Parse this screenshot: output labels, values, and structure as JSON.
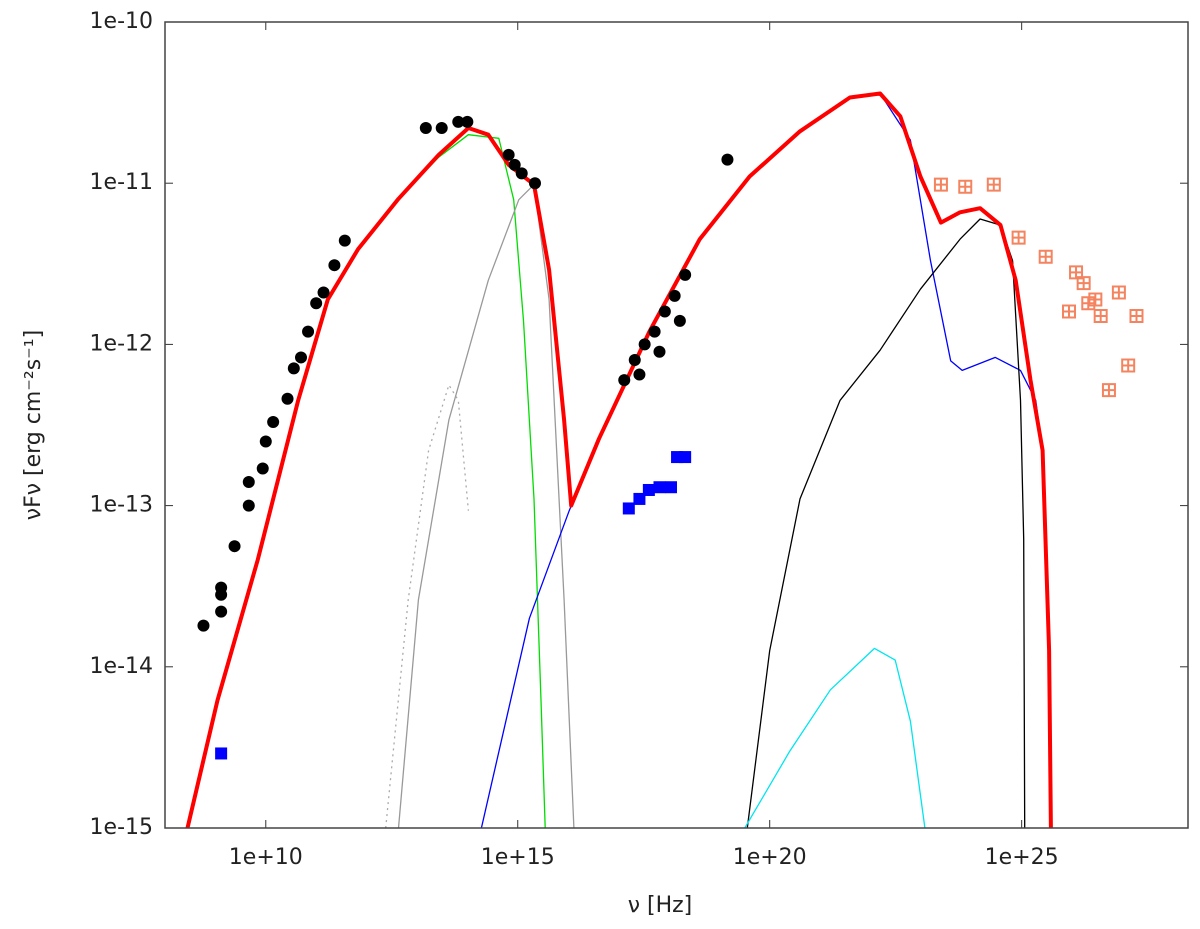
{
  "chart_data": {
    "type": "line",
    "xlabel": "ν [Hz]",
    "ylabel": "νFν [erg cm⁻²s⁻¹]",
    "xscale": "log",
    "yscale": "log",
    "xlim": [
      100000000.0,
      2e+28
    ],
    "ylim": [
      1e-15,
      1e-10
    ],
    "xticks": [
      {
        "value": 10000000000.0,
        "label": "1e+10"
      },
      {
        "value": 1000000000000000.0,
        "label": "1e+15"
      },
      {
        "value": 1e+20,
        "label": "1e+20"
      },
      {
        "value": 1e+25,
        "label": "1e+25"
      }
    ],
    "yticks": [
      {
        "value": 1e-15,
        "label": "1e-15"
      },
      {
        "value": 1e-14,
        "label": "1e-14"
      },
      {
        "value": 1e-13,
        "label": "1e-13"
      },
      {
        "value": 1e-12,
        "label": "1e-12"
      },
      {
        "value": 1e-11,
        "label": "1e-11"
      },
      {
        "value": 1e-10,
        "label": "1e-10"
      }
    ],
    "grid": false,
    "series": [
      {
        "mode": "line",
        "color": "#ff0000",
        "width": 4,
        "x": [
          280000000.0,
          1100000000.0,
          6900000000.0,
          44000000000.0,
          170000000000.0,
          680000000000.0,
          4300000000000.0,
          27000000000000.0,
          105000000000000.0,
          260000000000000.0,
          660000000000000.0,
          2100000000000000.0,
          4200000000000000.0,
          8300000000000000.0,
          1.15e+16,
          4.1e+16,
          4.1e+17,
          4.1e+18,
          4e+19,
          4e+20,
          3.9e+21,
          1.55e+22,
          3.9e+22,
          9.8e+22,
          2.5e+23,
          6e+23,
          1.5e+24,
          3.8e+24,
          7.6e+24,
          1.5e+25,
          2.6e+25,
          3.5e+25,
          3.8e+25
        ],
        "values": [
          1e-15,
          6.2e-15,
          4.6e-14,
          4.5e-13,
          1.9e-12,
          3.9e-12,
          8e-12,
          1.5e-11,
          2.2e-11,
          2e-11,
          1.3e-11,
          9.8e-12,
          2.9e-12,
          3.4e-13,
          1e-13,
          2.6e-13,
          1.2e-12,
          4.5e-12,
          1.1e-11,
          2.1e-11,
          3.4e-11,
          3.6e-11,
          2.6e-11,
          1.1e-11,
          5.7e-12,
          6.6e-12,
          7e-12,
          5.5e-12,
          2.5e-12,
          6e-13,
          2.2e-13,
          1.26e-14,
          1e-15
        ]
      },
      {
        "mode": "line",
        "color": "#00dd00",
        "width": 1.3,
        "x": [
          280000000.0,
          1100000000.0,
          6900000000.0,
          44000000000.0,
          170000000000.0,
          680000000000.0,
          4300000000000.0,
          27000000000000.0,
          105000000000000.0,
          420000000000000.0,
          830000000000000.0,
          1300000000000000.0,
          2100000000000000.0,
          2900000000000000.0,
          3500000000000000.0
        ],
        "values": [
          1e-15,
          6.2e-15,
          4.6e-14,
          4.5e-13,
          1.9e-12,
          3.9e-12,
          8e-12,
          1.45e-11,
          2e-11,
          1.9e-11,
          7.9e-12,
          1.4e-12,
          1.1e-13,
          6.2e-15,
          1e-15
        ]
      },
      {
        "mode": "line",
        "color": "#999999",
        "width": 1.3,
        "x": [
          4300000000000.0,
          10700000000000.0,
          43000000000000.0,
          260000000000000.0,
          1050000000000000.0,
          2100000000000000.0,
          4200000000000000.0,
          8300000000000000.0,
          1.3e+16
        ],
        "values": [
          1e-15,
          2.6e-14,
          3.4e-13,
          2.5e-12,
          7.9e-12,
          9.8e-12,
          1.9e-12,
          2.6e-14,
          1e-15
        ]
      },
      {
        "mode": "line",
        "color": "#aaaaaa",
        "width": 1.3,
        "dash": "2,4",
        "x": [
          2400000000000.0,
          6700000000000.0,
          17000000000000.0,
          43000000000000.0,
          66000000000000.0,
          105000000000000.0
        ],
        "values": [
          1e-15,
          2.6e-14,
          2.2e-13,
          5.6e-13,
          4.5e-13,
          9.3e-14
        ]
      },
      {
        "mode": "line",
        "color": "#0000ff",
        "width": 1.3,
        "x": [
          190000000000000.0,
          1700000000000000.0,
          1.05e+16,
          4.1e+16,
          4.1e+17,
          4.1e+18,
          4e+19,
          4e+20,
          3.9e+21,
          1.55e+22,
          6.2e+22,
          1.55e+23,
          3.9e+23,
          6.6e+23,
          3e+24,
          9.5e+24,
          1.9e+25,
          2.6e+25,
          3.5e+25,
          3.8e+25
        ],
        "values": [
          1e-15,
          2e-14,
          9.3e-14,
          2.6e-13,
          1.2e-12,
          4.5e-12,
          1.1e-11,
          2.1e-11,
          3.4e-11,
          3.6e-11,
          1.85e-11,
          3.3e-12,
          7.9e-13,
          6.9e-13,
          8.3e-13,
          6.9e-13,
          4.5e-13,
          2.2e-13,
          1.26e-14,
          1e-15
        ]
      },
      {
        "mode": "line",
        "color": "#000000",
        "width": 1.3,
        "x": [
          3.6e+19,
          1e+20,
          4e+20,
          2.5e+21,
          1.55e+22,
          9.8e+22,
          6e+23,
          1.5e+24,
          3.8e+24,
          6.6e+24,
          9.5e+24,
          1.1e+25,
          1.15e+25
        ],
        "values": [
          1e-15,
          1.26e-14,
          1.1e-13,
          4.5e-13,
          9.2e-13,
          2.2e-12,
          4.5e-12,
          6e-12,
          5.5e-12,
          3.3e-12,
          4.5e-13,
          6.2e-14,
          1e-15
        ]
      },
      {
        "mode": "line",
        "color": "#00e5ee",
        "width": 1.3,
        "x": [
          3.2e+19,
          2.5e+20,
          1.6e+21,
          1.2e+22,
          3.1e+22,
          6.2e+22,
          1.2e+23
        ],
        "values": [
          1e-15,
          3e-15,
          7.2e-15,
          1.3e-14,
          1.1e-14,
          4.6e-15,
          1e-15
        ]
      },
      {
        "mode": "markers",
        "marker": "circle",
        "color": "#000000",
        "x": [
          580000000.0,
          1300000000.0,
          1300000000.0,
          1300000000.0,
          2400000000.0,
          4600000000.0,
          4600000000.0,
          8700000000.0,
          10000000000.0,
          14000000000.0,
          27000000000.0,
          36000000000.0,
          50000000000.0,
          69000000000.0,
          100000000000.0,
          140000000000.0,
          230000000000.0,
          370000000000.0,
          15000000000000.0,
          31000000000000.0,
          66000000000000.0,
          100000000000000.0,
          660000000000000.0,
          870000000000000.0,
          1200000000000000.0,
          2200000000000000.0,
          1.3e+17,
          2.1e+17,
          3.3e+17,
          5.2e+17,
          8.3e+17,
          1.3e+18,
          2.1e+18,
          2.6e+17,
          6.5e+17,
          1.65e+18,
          1.45e+19
        ],
        "values": [
          1.8e-14,
          2.2e-14,
          2.8e-14,
          3.1e-14,
          5.6e-14,
          1e-13,
          1.4e-13,
          1.7e-13,
          2.5e-13,
          3.3e-13,
          4.6e-13,
          7.1e-13,
          8.3e-13,
          1.2e-12,
          1.8e-12,
          2.1e-12,
          3.1e-12,
          4.4e-12,
          2.2e-11,
          2.2e-11,
          2.4e-11,
          2.4e-11,
          1.5e-11,
          1.3e-11,
          1.15e-11,
          1e-11,
          6e-13,
          8e-13,
          1e-12,
          1.2e-12,
          1.6e-12,
          2e-12,
          2.7e-12,
          6.5e-13,
          9e-13,
          1.4e-12,
          1.4e-11
        ]
      },
      {
        "mode": "markers",
        "marker": "square",
        "color": "#0000ff",
        "x": [
          1300000000.0,
          1.6e+17,
          2.6e+17,
          4e+17,
          6.5e+17,
          1.1e+18,
          1.45e+18,
          2.1e+18
        ],
        "values": [
          2.9e-15,
          9.6e-14,
          1.1e-13,
          1.25e-13,
          1.3e-13,
          1.3e-13,
          2e-13,
          2e-13
        ]
      },
      {
        "mode": "markers",
        "marker": "open-square",
        "color": "#f4845f",
        "x": [
          2.5e+23,
          7.6e+23,
          2.8e+24,
          8.7e+24,
          3e+25,
          8.7e+25,
          1.2e+26,
          1.7e+26,
          2.1e+26,
          2.9e+26,
          3.7e+26,
          5.4e+26,
          8.5e+26,
          1.3e+27,
          1.9e+27
        ],
        "values": [
          9.8e-12,
          9.5e-12,
          9.8e-12,
          4.6e-12,
          3.5e-12,
          1.6e-12,
          2.8e-12,
          2.4e-12,
          1.8e-12,
          1.9e-12,
          1.5e-12,
          5.2e-13,
          2.1e-12,
          7.4e-13,
          1.5e-12
        ]
      }
    ]
  }
}
